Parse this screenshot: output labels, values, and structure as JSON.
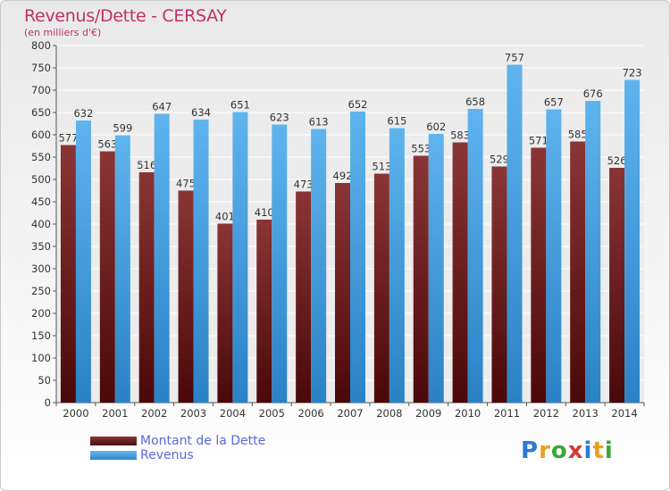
{
  "title": "Revenus/Dette - CERSAY",
  "subtitle": "(en milliers d'€)",
  "legend": [
    {
      "label": "Montant de la Dette",
      "color": "#6b1a1a"
    },
    {
      "label": "Revenus",
      "color": "#4aa3e0"
    }
  ],
  "logo": {
    "letters": [
      "P",
      "r",
      "o",
      "x",
      "i",
      "t",
      "i"
    ],
    "colors": [
      "#2d7ad6",
      "#e8a020",
      "#3aa63a",
      "#d23a3a",
      "#2d7ad6",
      "#e8a020",
      "#3aa63a"
    ]
  },
  "chart_data": {
    "type": "bar",
    "title": "Revenus/Dette - CERSAY",
    "ylabel": "(en milliers d'€)",
    "categories": [
      "2000",
      "2001",
      "2002",
      "2003",
      "2004",
      "2005",
      "2006",
      "2007",
      "2008",
      "2009",
      "2010",
      "2011",
      "2012",
      "2013",
      "2014"
    ],
    "series": [
      {
        "name": "Montant de la Dette",
        "color": "#6b1a1a",
        "values": [
          577,
          563,
          516,
          475,
          401,
          410,
          473,
          492,
          513,
          553,
          583,
          529,
          571,
          585,
          526
        ]
      },
      {
        "name": "Revenus",
        "color": "#4aa3e0",
        "values": [
          632,
          599,
          647,
          634,
          651,
          623,
          613,
          652,
          615,
          602,
          658,
          757,
          657,
          676,
          723
        ]
      }
    ],
    "ylim": [
      0,
      800
    ],
    "yticks": [
      0,
      50,
      100,
      150,
      200,
      250,
      300,
      350,
      400,
      450,
      500,
      550,
      600,
      650,
      700,
      750,
      800
    ],
    "grid": true
  }
}
